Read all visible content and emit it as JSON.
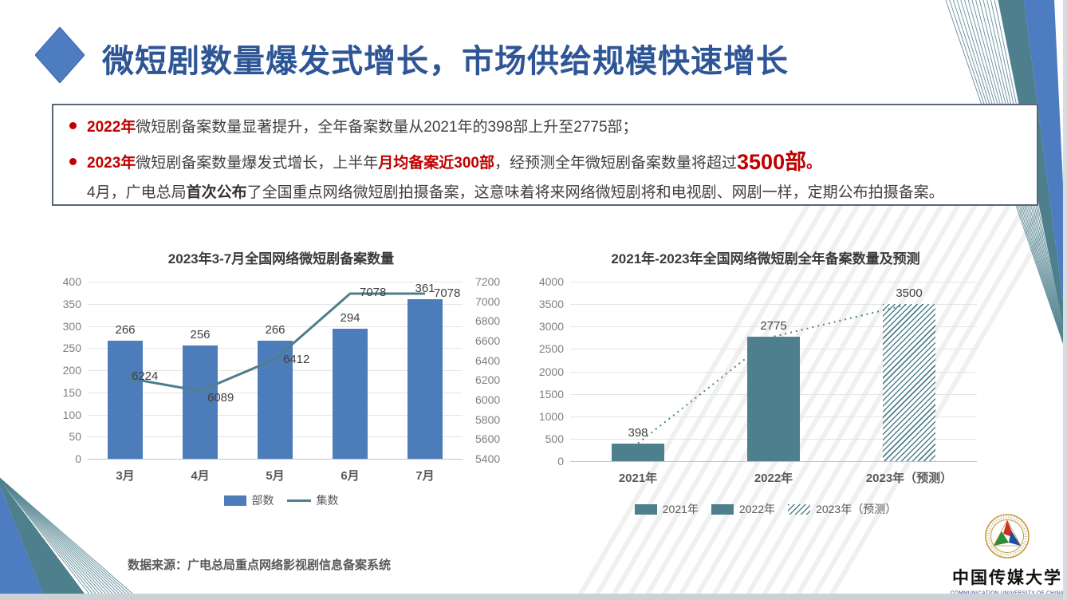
{
  "header": {
    "title": "微短剧数量爆发式增长，市场供给规模快速增长"
  },
  "highlights": {
    "lines": [
      {
        "bullet": true,
        "segments": [
          {
            "t": "2022年",
            "s": "red-bold"
          },
          {
            "t": "微短剧备案数量显著提升，全年备案数量从2021年的398部上升至2775部；",
            "s": "normal"
          }
        ]
      },
      {
        "bullet": true,
        "segments": [
          {
            "t": "2023年",
            "s": "red-bold"
          },
          {
            "t": "微短剧备案数量爆发式增长，上半年",
            "s": "normal"
          },
          {
            "t": "月均备案近300部",
            "s": "red-bold"
          },
          {
            "t": "，经预测全年微短剧备案数量将超过",
            "s": "normal"
          },
          {
            "t": "3500部",
            "s": "red-bold-large"
          },
          {
            "t": "。",
            "s": "red-bold"
          }
        ]
      },
      {
        "bullet": false,
        "segments": [
          {
            "t": "4月，广电总局",
            "s": "normal"
          },
          {
            "t": "首次公布",
            "s": "bold"
          },
          {
            "t": "了全国重点网络微短剧拍摄备案，这意味着将来网络微短剧将和电视剧、网剧一样，定期公布拍摄备案。",
            "s": "normal"
          }
        ]
      }
    ]
  },
  "chart_data": [
    {
      "type": "bar-line-combo",
      "title": "2023年3-7月全国网络微短剧备案数量",
      "categories": [
        "3月",
        "4月",
        "5月",
        "6月",
        "7月"
      ],
      "series": [
        {
          "name": "部数",
          "kind": "bar",
          "axis": "left",
          "values": [
            266,
            256,
            266,
            294,
            361
          ],
          "color": "#4d7cba"
        },
        {
          "name": "集数",
          "kind": "line",
          "axis": "right",
          "values": [
            6224,
            6089,
            6412,
            7078,
            7078
          ],
          "color": "#4e7f8c"
        }
      ],
      "axes": {
        "left": {
          "min": 0,
          "max": 400,
          "ticks": [
            400,
            350,
            300,
            250,
            200,
            150,
            100,
            50,
            0
          ]
        },
        "right": {
          "min": 5400,
          "max": 7200,
          "ticks": [
            7200,
            7000,
            6800,
            6600,
            6400,
            6200,
            6000,
            5800,
            5600,
            5400
          ]
        }
      },
      "legend": [
        "部数",
        "集数"
      ],
      "grid": true,
      "legend_position": "bottom"
    },
    {
      "type": "bar",
      "title": "2021年-2023年全国网络微短剧全年备案数量及预测",
      "categories": [
        "2021年",
        "2022年",
        "2023年（预测）"
      ],
      "values": [
        398,
        2775,
        3500
      ],
      "bar_styles": [
        "solid",
        "solid",
        "hatch"
      ],
      "color": "#4e7f8c",
      "trendline": {
        "style": "dotted",
        "color": "#4e7f8c"
      },
      "axis": {
        "min": 0,
        "max": 4000,
        "ticks": [
          4000,
          3500,
          3000,
          2500,
          2000,
          1500,
          1000,
          500,
          0
        ]
      },
      "legend": [
        {
          "label": "2021年",
          "swatch": "solid"
        },
        {
          "label": "2022年",
          "swatch": "solid"
        },
        {
          "label": "2023年（预测）",
          "swatch": "hatch"
        }
      ],
      "grid": true,
      "legend_position": "bottom"
    }
  ],
  "source_note": "数据来源：广电总局重点网络影视剧信息备案系统",
  "logo": {
    "name_cn": "中国传媒大学",
    "name_en": "COMMUNICATION UNIVERSITY OF CHINA"
  },
  "colors": {
    "title_blue": "#2e5696",
    "accent_blue": "#4d7cc0",
    "red": "#c00000",
    "bar_blue": "#4d7cba",
    "teal": "#4e7f8c",
    "grid": "#e4e4e4",
    "axis_text": "#7f7f7f",
    "text_dark": "#404040",
    "watermark": "#f0f0f0"
  }
}
